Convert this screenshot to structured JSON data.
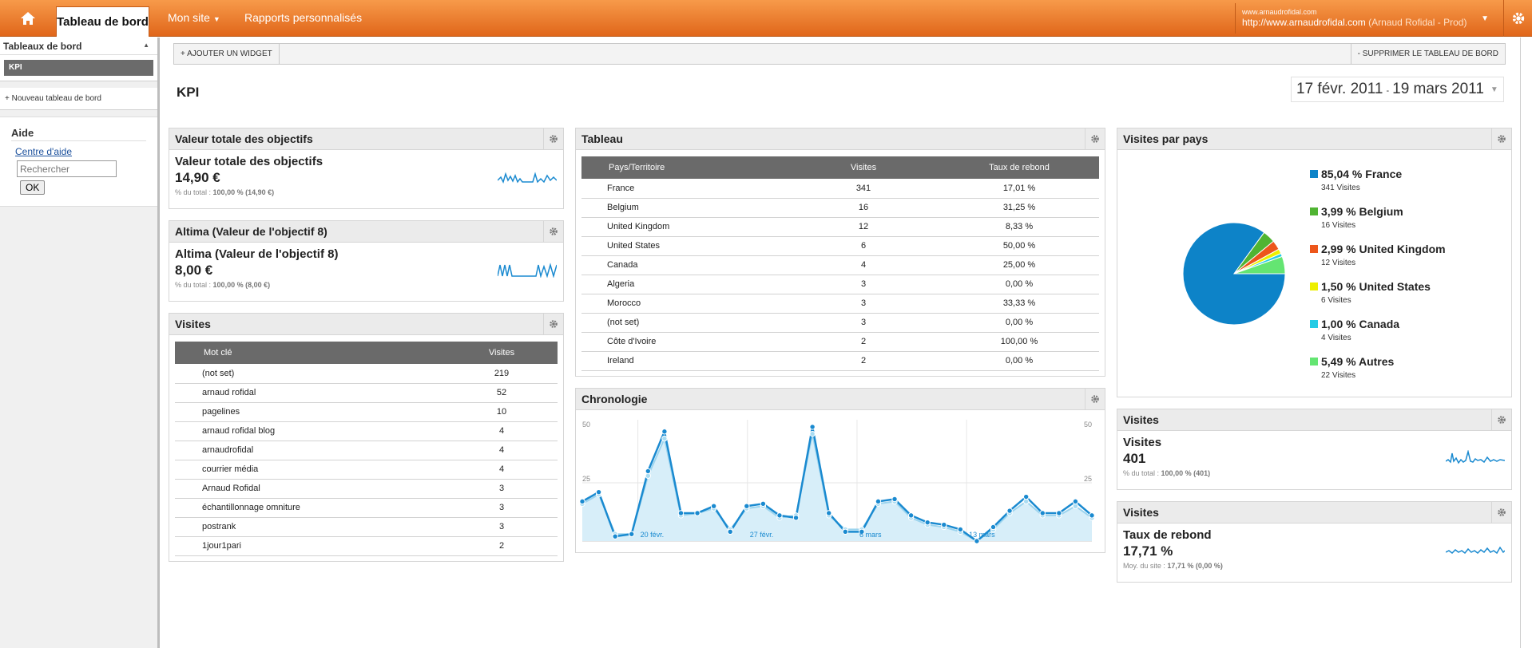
{
  "topbar": {
    "home_icon": "home-icon",
    "active_tab": "Tableau de bord",
    "nav_site": "Mon site",
    "nav_reports": "Rapports personnalisés",
    "account_small": "www.arnaudrofidal.com",
    "account_url": "http://www.arnaudrofidal.com",
    "account_profile": "(Arnaud Rofidal - Prod)"
  },
  "sidebar": {
    "dashboards_title": "Tableaux de bord",
    "kpi_item": "KPI",
    "new_dashboard": "+ Nouveau tableau de bord",
    "help_title": "Aide",
    "help_link": "Centre d'aide",
    "search_placeholder": "Rechercher",
    "ok_label": "OK"
  },
  "toolbar": {
    "add_widget": "+ AJOUTER UN WIDGET",
    "delete_dashboard": "- SUPPRIMER LE TABLEAU DE BORD"
  },
  "page": {
    "title": "KPI",
    "date_start": "17 févr. 2011",
    "date_sep": "-",
    "date_end": "19 mars 2011"
  },
  "widgets": {
    "goal_total": {
      "header": "Valeur totale des objectifs",
      "title": "Valeur totale des objectifs",
      "value": "14,90 €",
      "sub_label": "% du total :",
      "sub_value": "100,00 % (14,90 €)"
    },
    "goal8": {
      "header": "Altima (Valeur de l'objectif 8)",
      "title": "Altima (Valeur de l'objectif 8)",
      "value": "8,00 €",
      "sub_label": "% du total :",
      "sub_value": "100,00 % (8,00 €)"
    },
    "keywords": {
      "header": "Visites",
      "col1": "Mot clé",
      "col2": "Visites",
      "rows": [
        {
          "k": "(not set)",
          "v": "219"
        },
        {
          "k": "arnaud rofidal",
          "v": "52"
        },
        {
          "k": "pagelines",
          "v": "10"
        },
        {
          "k": "arnaud rofidal blog",
          "v": "4"
        },
        {
          "k": "arnaudrofidal",
          "v": "4"
        },
        {
          "k": "courrier média",
          "v": "4"
        },
        {
          "k": "Arnaud Rofidal",
          "v": "3"
        },
        {
          "k": "échantillonnage omniture",
          "v": "3"
        },
        {
          "k": "postrank",
          "v": "3"
        },
        {
          "k": "1jour1pari",
          "v": "2"
        }
      ]
    },
    "table": {
      "header": "Tableau",
      "col1": "Pays/Territoire",
      "col2": "Visites",
      "col3": "Taux de rebond",
      "rows": [
        {
          "c": "France",
          "v": "341",
          "r": "17,01 %"
        },
        {
          "c": "Belgium",
          "v": "16",
          "r": "31,25 %"
        },
        {
          "c": "United Kingdom",
          "v": "12",
          "r": "8,33 %"
        },
        {
          "c": "United States",
          "v": "6",
          "r": "50,00 %"
        },
        {
          "c": "Canada",
          "v": "4",
          "r": "25,00 %"
        },
        {
          "c": "Algeria",
          "v": "3",
          "r": "0,00 %"
        },
        {
          "c": "Morocco",
          "v": "3",
          "r": "33,33 %"
        },
        {
          "c": "(not set)",
          "v": "3",
          "r": "0,00 %"
        },
        {
          "c": "Côte d'Ivoire",
          "v": "2",
          "r": "100,00 %"
        },
        {
          "c": "Ireland",
          "v": "2",
          "r": "0,00 %"
        }
      ]
    },
    "timeline": {
      "header": "Chronologie",
      "y_max_label": "50",
      "y_mid_label": "25",
      "x_labels": [
        "20 févr.",
        "27 févr.",
        "6 mars",
        "13 mars"
      ],
      "series_current": [
        17,
        21,
        2,
        3,
        30,
        47,
        12,
        12,
        15,
        4,
        15,
        16,
        11,
        10,
        49,
        12,
        4,
        4,
        17,
        18,
        11,
        8,
        7,
        5,
        0,
        6,
        13,
        19,
        12,
        12,
        17,
        11
      ],
      "series_previous": [
        16,
        20,
        3,
        3,
        28,
        44,
        11,
        12,
        14,
        5,
        14,
        15,
        10,
        11,
        46,
        11,
        5,
        5,
        16,
        17,
        10,
        7,
        6,
        4,
        0,
        5,
        12,
        17,
        11,
        11,
        15,
        10
      ]
    },
    "countries": {
      "header": "Visites par pays",
      "slices": [
        {
          "pct": "85,04 % France",
          "visits": "341 Visites",
          "color": "#0d83c8",
          "value": 85.04
        },
        {
          "pct": "3,99 % Belgium",
          "visits": "16 Visites",
          "color": "#50b432",
          "value": 3.99
        },
        {
          "pct": "2,99 % United Kingdom",
          "visits": "12 Visites",
          "color": "#ed561b",
          "value": 2.99
        },
        {
          "pct": "1,50 % United States",
          "visits": "6 Visites",
          "color": "#edef00",
          "value": 1.5
        },
        {
          "pct": "1,00 % Canada",
          "visits": "4 Visites",
          "color": "#24cbe5",
          "value": 1.0
        },
        {
          "pct": "5,49 % Autres",
          "visits": "22 Visites",
          "color": "#64e572",
          "value": 5.49
        }
      ]
    },
    "visits": {
      "header": "Visites",
      "title": "Visites",
      "value": "401",
      "sub_label": "% du total :",
      "sub_value": "100,00 % (401)"
    },
    "bounce": {
      "header": "Visites",
      "title": "Taux de rebond",
      "value": "17,71 %",
      "sub_label": "Moy. du site :",
      "sub_value": "17,71 % (0,00 %)"
    }
  }
}
